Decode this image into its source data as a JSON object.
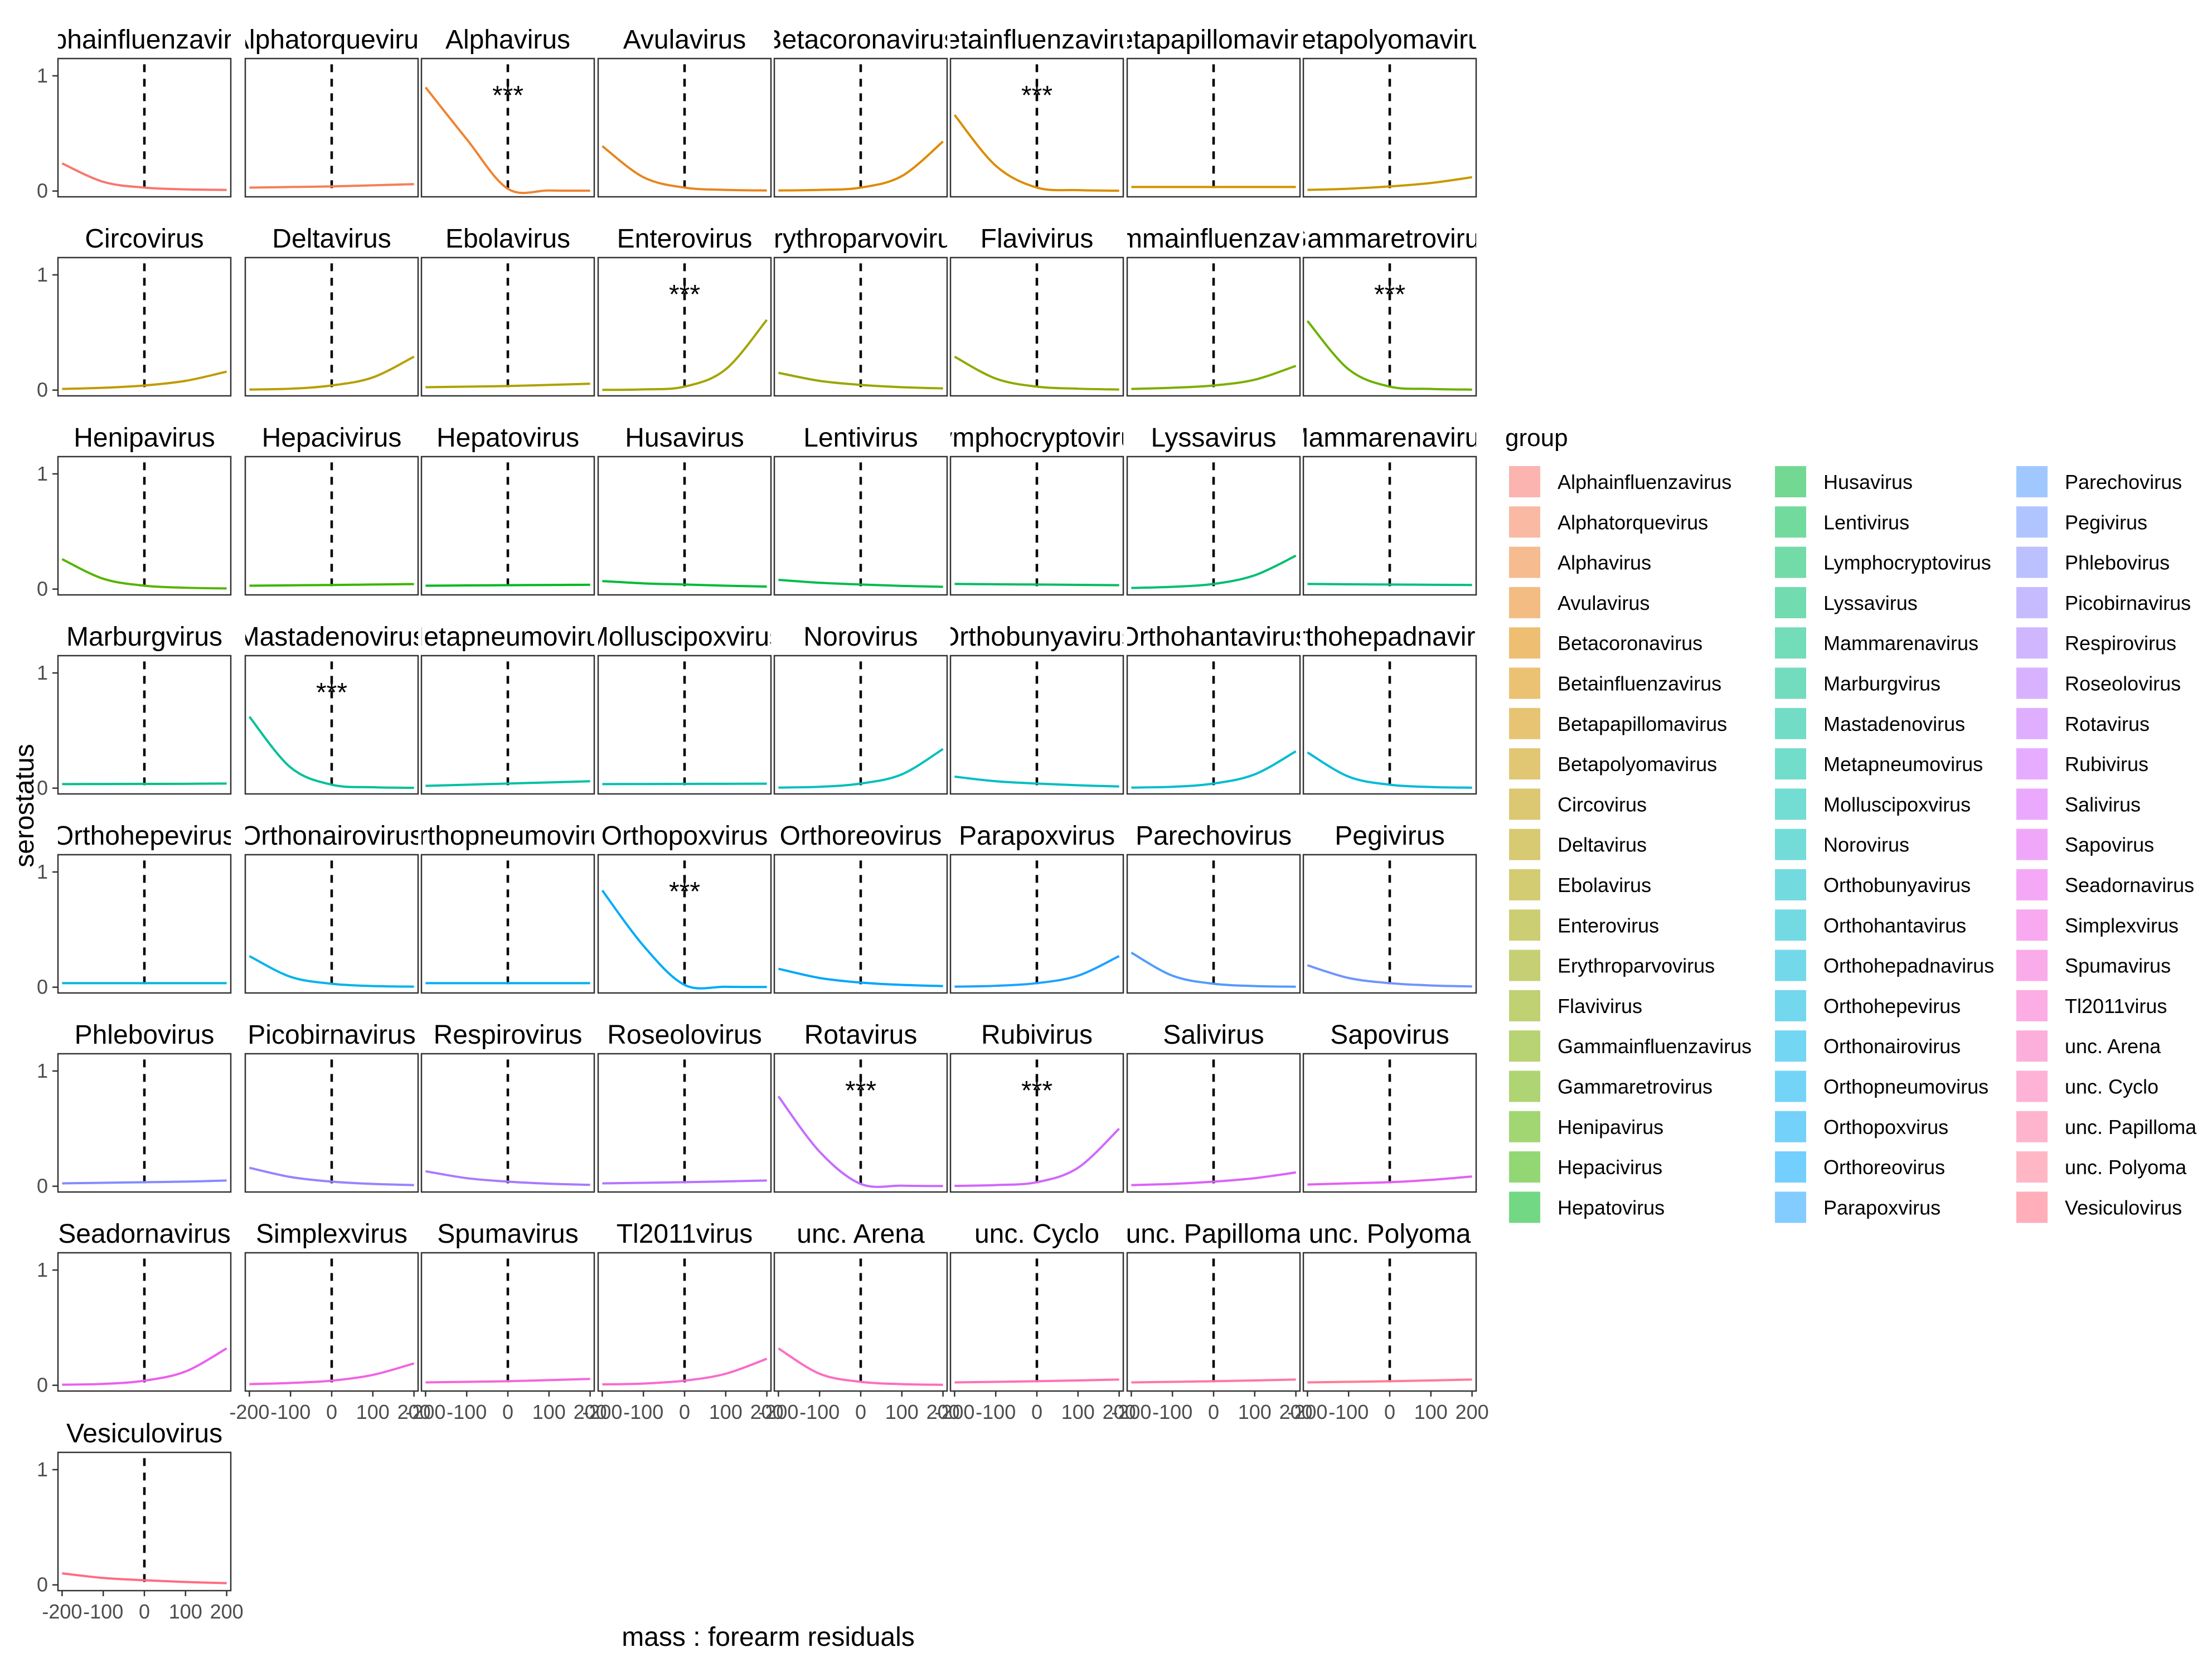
{
  "chart_data": {
    "type": "line",
    "xlabel": "mass : forearm residuals",
    "ylabel": "serostatus",
    "x_ticks": [
      -200,
      -100,
      0,
      100,
      200
    ],
    "y_ticks": [
      0,
      1
    ],
    "xlim": [
      -210,
      210
    ],
    "ylim": [
      -0.05,
      1.15
    ],
    "vline_x": 0,
    "significance_marker": "***",
    "legend": {
      "title": "group",
      "position": "right",
      "ncol": 3
    },
    "panels": [
      {
        "name": "Alphainfluenzavirus",
        "color": "#F8766D",
        "x": [
          -200,
          -100,
          0,
          100,
          200
        ],
        "y": [
          0.24,
          0.08,
          0.03,
          0.015,
          0.01
        ],
        "sig": false
      },
      {
        "name": "Alphatorquevirus",
        "color": "#F47F57",
        "x": [
          -200,
          -100,
          0,
          100,
          200
        ],
        "y": [
          0.03,
          0.035,
          0.04,
          0.05,
          0.06
        ],
        "sig": false
      },
      {
        "name": "Alphavirus",
        "color": "#EE8433",
        "x": [
          -200,
          -100,
          0,
          100,
          200
        ],
        "y": [
          0.9,
          0.45,
          0.02,
          0.005,
          0.003
        ],
        "sig": true
      },
      {
        "name": "Avulavirus",
        "color": "#E7851E",
        "x": [
          -200,
          -100,
          0,
          100,
          200
        ],
        "y": [
          0.39,
          0.12,
          0.03,
          0.01,
          0.005
        ],
        "sig": false
      },
      {
        "name": "Betacoronavirus",
        "color": "#E08A00",
        "x": [
          -200,
          -100,
          0,
          100,
          200
        ],
        "y": [
          0.005,
          0.01,
          0.03,
          0.13,
          0.43
        ],
        "sig": false
      },
      {
        "name": "Betainfluenzavirus",
        "color": "#DA8E00",
        "x": [
          -200,
          -100,
          0,
          100,
          200
        ],
        "y": [
          0.66,
          0.22,
          0.03,
          0.008,
          0.003
        ],
        "sig": true
      },
      {
        "name": "Betapapillomavirus",
        "color": "#D19300",
        "x": [
          -200,
          -100,
          0,
          100,
          200
        ],
        "y": [
          0.035,
          0.035,
          0.035,
          0.035,
          0.035
        ],
        "sig": false
      },
      {
        "name": "Betapolyomavirus",
        "color": "#C99800",
        "x": [
          -200,
          -100,
          0,
          100,
          200
        ],
        "y": [
          0.01,
          0.02,
          0.04,
          0.07,
          0.12
        ],
        "sig": false
      },
      {
        "name": "Circovirus",
        "color": "#C09B00",
        "x": [
          -200,
          -100,
          0,
          100,
          200
        ],
        "y": [
          0.01,
          0.02,
          0.04,
          0.08,
          0.16
        ],
        "sig": false
      },
      {
        "name": "Deltavirus",
        "color": "#B79F00",
        "x": [
          -200,
          -100,
          0,
          100,
          200
        ],
        "y": [
          0.005,
          0.012,
          0.04,
          0.11,
          0.29
        ],
        "sig": false
      },
      {
        "name": "Ebolavirus",
        "color": "#AEA200",
        "x": [
          -200,
          -100,
          0,
          100,
          200
        ],
        "y": [
          0.025,
          0.03,
          0.035,
          0.045,
          0.055
        ],
        "sig": false
      },
      {
        "name": "Enterovirus",
        "color": "#A3A500",
        "x": [
          -200,
          -100,
          0,
          100,
          200
        ],
        "y": [
          0.002,
          0.006,
          0.03,
          0.18,
          0.61
        ],
        "sig": true
      },
      {
        "name": "Erythroparvovirus",
        "color": "#97A800",
        "x": [
          -200,
          -100,
          0,
          100,
          200
        ],
        "y": [
          0.15,
          0.08,
          0.045,
          0.025,
          0.015
        ],
        "sig": false
      },
      {
        "name": "Flavivirus",
        "color": "#8BAB00",
        "x": [
          -200,
          -100,
          0,
          100,
          200
        ],
        "y": [
          0.29,
          0.1,
          0.03,
          0.012,
          0.005
        ],
        "sig": false
      },
      {
        "name": "Gammainfluenzavirus",
        "color": "#7CAE00",
        "x": [
          -200,
          -100,
          0,
          100,
          200
        ],
        "y": [
          0.01,
          0.02,
          0.04,
          0.09,
          0.21
        ],
        "sig": false
      },
      {
        "name": "Gammaretrovirus",
        "color": "#6BB100",
        "x": [
          -200,
          -100,
          0,
          100,
          200
        ],
        "y": [
          0.6,
          0.18,
          0.03,
          0.01,
          0.004
        ],
        "sig": true
      },
      {
        "name": "Henipavirus",
        "color": "#55B400",
        "x": [
          -200,
          -100,
          0,
          100,
          200
        ],
        "y": [
          0.26,
          0.09,
          0.03,
          0.012,
          0.006
        ],
        "sig": false
      },
      {
        "name": "Hepacivirus",
        "color": "#39B600",
        "x": [
          -200,
          -100,
          0,
          100,
          200
        ],
        "y": [
          0.03,
          0.033,
          0.036,
          0.04,
          0.044
        ],
        "sig": false
      },
      {
        "name": "Hepatovirus",
        "color": "#00B81F",
        "x": [
          -200,
          -100,
          0,
          100,
          200
        ],
        "y": [
          0.03,
          0.032,
          0.034,
          0.036,
          0.038
        ],
        "sig": false
      },
      {
        "name": "Husavirus",
        "color": "#00BA38",
        "x": [
          -200,
          -100,
          0,
          100,
          200
        ],
        "y": [
          0.07,
          0.05,
          0.04,
          0.03,
          0.022
        ],
        "sig": false
      },
      {
        "name": "Lentivirus",
        "color": "#00BB4E",
        "x": [
          -200,
          -100,
          0,
          100,
          200
        ],
        "y": [
          0.08,
          0.055,
          0.04,
          0.028,
          0.02
        ],
        "sig": false
      },
      {
        "name": "Lymphocryptovirus",
        "color": "#00BD5F",
        "x": [
          -200,
          -100,
          0,
          100,
          200
        ],
        "y": [
          0.045,
          0.042,
          0.04,
          0.037,
          0.034
        ],
        "sig": false
      },
      {
        "name": "Lyssavirus",
        "color": "#00BE70",
        "x": [
          -200,
          -100,
          0,
          100,
          200
        ],
        "y": [
          0.01,
          0.02,
          0.045,
          0.12,
          0.29
        ],
        "sig": false
      },
      {
        "name": "Mammarenavirus",
        "color": "#00BF7D",
        "x": [
          -200,
          -100,
          0,
          100,
          200
        ],
        "y": [
          0.045,
          0.042,
          0.04,
          0.038,
          0.036
        ],
        "sig": false
      },
      {
        "name": "Marburgvirus",
        "color": "#00C08B",
        "x": [
          -200,
          -100,
          0,
          100,
          200
        ],
        "y": [
          0.035,
          0.036,
          0.037,
          0.038,
          0.04
        ],
        "sig": false
      },
      {
        "name": "Mastadenovirus",
        "color": "#00C097",
        "x": [
          -200,
          -100,
          0,
          100,
          200
        ],
        "y": [
          0.62,
          0.18,
          0.03,
          0.008,
          0.003
        ],
        "sig": true
      },
      {
        "name": "Metapneumovirus",
        "color": "#00C1A3",
        "x": [
          -200,
          -100,
          0,
          100,
          200
        ],
        "y": [
          0.02,
          0.03,
          0.04,
          0.05,
          0.06
        ],
        "sig": false
      },
      {
        "name": "Molluscipoxvirus",
        "color": "#00C0AF",
        "x": [
          -200,
          -100,
          0,
          100,
          200
        ],
        "y": [
          0.035,
          0.036,
          0.037,
          0.038,
          0.039
        ],
        "sig": false
      },
      {
        "name": "Norovirus",
        "color": "#00BFBA",
        "x": [
          -200,
          -100,
          0,
          100,
          200
        ],
        "y": [
          0.005,
          0.012,
          0.04,
          0.12,
          0.34
        ],
        "sig": false
      },
      {
        "name": "Orthobunyavirus",
        "color": "#00BEC4",
        "x": [
          -200,
          -100,
          0,
          100,
          200
        ],
        "y": [
          0.1,
          0.06,
          0.04,
          0.025,
          0.015
        ],
        "sig": false
      },
      {
        "name": "Orthohantavirus",
        "color": "#00BCCE",
        "x": [
          -200,
          -100,
          0,
          100,
          200
        ],
        "y": [
          0.005,
          0.012,
          0.04,
          0.12,
          0.32
        ],
        "sig": false
      },
      {
        "name": "Orthohepadnavirus",
        "color": "#00BAD8",
        "x": [
          -200,
          -100,
          0,
          100,
          200
        ],
        "y": [
          0.31,
          0.1,
          0.03,
          0.01,
          0.004
        ],
        "sig": false
      },
      {
        "name": "Orthohepevirus",
        "color": "#00B7E0",
        "x": [
          -200,
          -100,
          0,
          100,
          200
        ],
        "y": [
          0.035,
          0.035,
          0.035,
          0.035,
          0.035
        ],
        "sig": false
      },
      {
        "name": "Orthonairovirus",
        "color": "#00B4E8",
        "x": [
          -200,
          -100,
          0,
          100,
          200
        ],
        "y": [
          0.27,
          0.09,
          0.03,
          0.01,
          0.005
        ],
        "sig": false
      },
      {
        "name": "Orthopneumovirus",
        "color": "#00B0F0",
        "x": [
          -200,
          -100,
          0,
          100,
          200
        ],
        "y": [
          0.035,
          0.035,
          0.035,
          0.035,
          0.035
        ],
        "sig": false
      },
      {
        "name": "Orthopoxvirus",
        "color": "#00ACF6",
        "x": [
          -200,
          -100,
          0,
          100,
          200
        ],
        "y": [
          0.84,
          0.36,
          0.02,
          0.004,
          0.002
        ],
        "sig": true
      },
      {
        "name": "Orthoreovirus",
        "color": "#00A7FC",
        "x": [
          -200,
          -100,
          0,
          100,
          200
        ],
        "y": [
          0.16,
          0.08,
          0.04,
          0.02,
          0.01
        ],
        "sig": false
      },
      {
        "name": "Parapoxvirus",
        "color": "#1EA2FF",
        "x": [
          -200,
          -100,
          0,
          100,
          200
        ],
        "y": [
          0.005,
          0.012,
          0.035,
          0.1,
          0.27
        ],
        "sig": false
      },
      {
        "name": "Parechovirus",
        "color": "#529BFF",
        "x": [
          -200,
          -100,
          0,
          100,
          200
        ],
        "y": [
          0.3,
          0.1,
          0.03,
          0.01,
          0.004
        ],
        "sig": false
      },
      {
        "name": "Pegivirus",
        "color": "#6F94FF",
        "x": [
          -200,
          -100,
          0,
          100,
          200
        ],
        "y": [
          0.19,
          0.08,
          0.035,
          0.015,
          0.007
        ],
        "sig": false
      },
      {
        "name": "Phlebovirus",
        "color": "#848CFF",
        "x": [
          -200,
          -100,
          0,
          100,
          200
        ],
        "y": [
          0.025,
          0.03,
          0.035,
          0.04,
          0.05
        ],
        "sig": false
      },
      {
        "name": "Picobirnavirus",
        "color": "#9783FF",
        "x": [
          -200,
          -100,
          0,
          100,
          200
        ],
        "y": [
          0.16,
          0.08,
          0.04,
          0.02,
          0.01
        ],
        "sig": false
      },
      {
        "name": "Respirovirus",
        "color": "#A87AFF",
        "x": [
          -200,
          -100,
          0,
          100,
          200
        ],
        "y": [
          0.13,
          0.07,
          0.04,
          0.022,
          0.012
        ],
        "sig": false
      },
      {
        "name": "Roseolovirus",
        "color": "#B873FF",
        "x": [
          -200,
          -100,
          0,
          100,
          200
        ],
        "y": [
          0.025,
          0.03,
          0.035,
          0.042,
          0.05
        ],
        "sig": false
      },
      {
        "name": "Rotavirus",
        "color": "#C56CFF",
        "x": [
          -200,
          -100,
          0,
          100,
          200
        ],
        "y": [
          0.78,
          0.3,
          0.02,
          0.005,
          0.002
        ],
        "sig": true
      },
      {
        "name": "Rubivirus",
        "color": "#D167FF",
        "x": [
          -200,
          -100,
          0,
          100,
          200
        ],
        "y": [
          0.003,
          0.01,
          0.035,
          0.16,
          0.5
        ],
        "sig": true
      },
      {
        "name": "Salivirus",
        "color": "#DB62FB",
        "x": [
          -200,
          -100,
          0,
          100,
          200
        ],
        "y": [
          0.01,
          0.02,
          0.04,
          0.07,
          0.12
        ],
        "sig": false
      },
      {
        "name": "Sapovirus",
        "color": "#E45FF4",
        "x": [
          -200,
          -100,
          0,
          100,
          200
        ],
        "y": [
          0.015,
          0.025,
          0.035,
          0.055,
          0.085
        ],
        "sig": false
      },
      {
        "name": "Seadornavirus",
        "color": "#EB60EC",
        "x": [
          -200,
          -100,
          0,
          100,
          200
        ],
        "y": [
          0.005,
          0.012,
          0.04,
          0.12,
          0.32
        ],
        "sig": false
      },
      {
        "name": "Simplexvirus",
        "color": "#F263E2",
        "x": [
          -200,
          -100,
          0,
          100,
          200
        ],
        "y": [
          0.01,
          0.02,
          0.04,
          0.09,
          0.19
        ],
        "sig": false
      },
      {
        "name": "Spumavirus",
        "color": "#F666D8",
        "x": [
          -200,
          -100,
          0,
          100,
          200
        ],
        "y": [
          0.025,
          0.03,
          0.035,
          0.045,
          0.055
        ],
        "sig": false
      },
      {
        "name": "Tl2011virus",
        "color": "#FA6ACC",
        "x": [
          -200,
          -100,
          0,
          100,
          200
        ],
        "y": [
          0.008,
          0.015,
          0.04,
          0.1,
          0.23
        ],
        "sig": false
      },
      {
        "name": "unc. Arena",
        "color": "#FC6EC0",
        "x": [
          -200,
          -100,
          0,
          100,
          200
        ],
        "y": [
          0.32,
          0.1,
          0.03,
          0.01,
          0.004
        ],
        "sig": false
      },
      {
        "name": "unc. Cyclo",
        "color": "#FE72B3",
        "x": [
          -200,
          -100,
          0,
          100,
          200
        ],
        "y": [
          0.025,
          0.03,
          0.035,
          0.042,
          0.05
        ],
        "sig": false
      },
      {
        "name": "unc. Papilloma",
        "color": "#FF77A6",
        "x": [
          -200,
          -100,
          0,
          100,
          200
        ],
        "y": [
          0.025,
          0.03,
          0.035,
          0.042,
          0.05
        ],
        "sig": false
      },
      {
        "name": "unc. Polyoma",
        "color": "#FF7C98",
        "x": [
          -200,
          -100,
          0,
          100,
          200
        ],
        "y": [
          0.025,
          0.03,
          0.035,
          0.042,
          0.05
        ],
        "sig": false
      },
      {
        "name": "Vesiculovirus",
        "color": "#FF6B81",
        "x": [
          -200,
          -100,
          0,
          100,
          200
        ],
        "y": [
          0.1,
          0.06,
          0.04,
          0.025,
          0.015
        ],
        "sig": false
      }
    ]
  }
}
